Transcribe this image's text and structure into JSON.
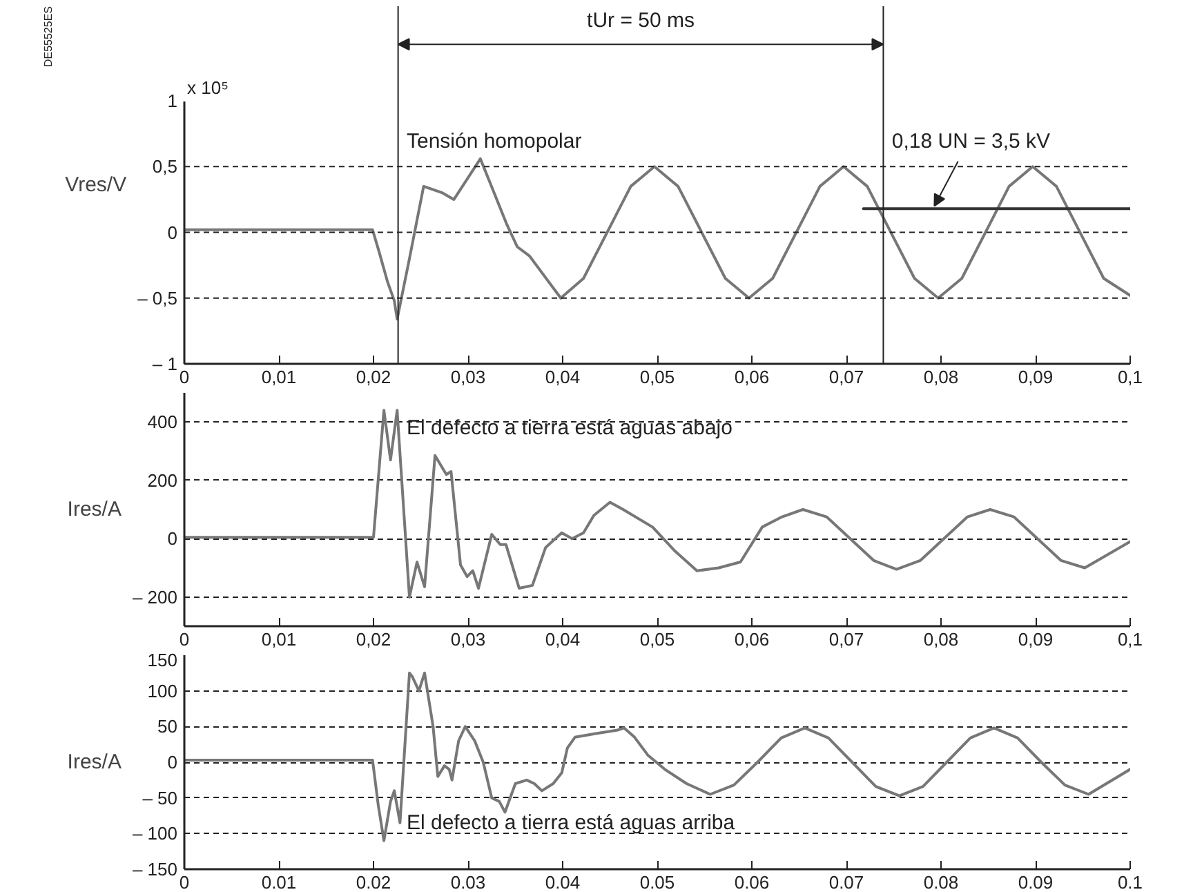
{
  "chart_data": [
    {
      "type": "line",
      "ylabel": "Vres/V",
      "xlim": [
        0,
        0.1
      ],
      "ylim": [
        -1,
        1
      ],
      "xticks": [
        0,
        {
          "value": 0.01,
          "label": "0,01"
        },
        {
          "value": 0.02,
          "label": "0,02"
        },
        {
          "value": 0.03,
          "label": "0,03"
        },
        {
          "value": 0.04,
          "label": "0,04"
        },
        {
          "value": 0.05,
          "label": "0,05"
        },
        {
          "value": 0.06,
          "label": "0,06"
        },
        {
          "value": 0.07,
          "label": "0,07"
        },
        {
          "value": 0.08,
          "label": "0,08"
        },
        {
          "value": 0.09,
          "label": "0,09"
        },
        {
          "value": 0.1,
          "label": "0,1"
        }
      ],
      "yticks": [
        1,
        {
          "value": 0.5,
          "label": "0,5"
        },
        0,
        {
          "value": -0.5,
          "label": "– 0,5"
        },
        {
          "value": -1,
          "label": "– 1"
        }
      ],
      "series": [
        {
          "color": "#777777",
          "x": [
            0,
            0.0199,
            0.0206,
            0.0215,
            0.0222,
            0.0225,
            0.0238,
            0.0253,
            0.0273,
            0.0285,
            0.0313,
            0.0341,
            0.0352,
            0.0365,
            0.0398,
            0.0422,
            0.0447,
            0.0472,
            0.0497,
            0.0522,
            0.0547,
            0.0572,
            0.0597,
            0.0622,
            0.0647,
            0.0672,
            0.0697,
            0.0722,
            0.0747,
            0.0772,
            0.0797,
            0.0822,
            0.0847,
            0.0872,
            0.0897,
            0.0922,
            0.0947,
            0.0972,
            0.1
          ],
          "values": [
            0.02,
            0.02,
            -0.15,
            -0.38,
            -0.52,
            -0.66,
            -0.2,
            0.35,
            0.3,
            0.25,
            0.56,
            0.06,
            -0.11,
            -0.18,
            -0.5,
            -0.35,
            0,
            0.35,
            0.5,
            0.35,
            0,
            -0.35,
            -0.5,
            -0.35,
            0,
            0.35,
            0.5,
            0.35,
            0,
            -0.35,
            -0.5,
            -0.35,
            0,
            0.35,
            0.5,
            0.35,
            0,
            -0.35,
            -0.48
          ]
        },
        {
          "type": "line",
          "color": "#333333",
          "x": [
            0.0718,
            0.1
          ],
          "values": [
            0.18,
            0.18
          ]
        }
      ],
      "ref_lines": [
        {
          "axis": "y",
          "value": 0.5,
          "color": "#222222",
          "line_style": "dashed"
        },
        {
          "axis": "y",
          "value": 0,
          "color": "#222222",
          "line_style": "dashed"
        },
        {
          "axis": "y",
          "value": -0.5,
          "color": "#222222",
          "line_style": "dashed"
        },
        {
          "axis": "x",
          "value": 0.0226,
          "color": "#222222",
          "line_style": "solid"
        },
        {
          "axis": "x",
          "value": 0.0739,
          "color": "#222222",
          "line_style": "solid"
        }
      ],
      "annotations": [
        "DE55525ES",
        "x 10⁵",
        "Tensión homopolar",
        "tUr = 50 ms",
        {
          "text": "0,18 UN = 3,5 kV",
          "x": 0.0793,
          "y": 0.2
        }
      ]
    },
    {
      "type": "line",
      "ylabel": "Ires/A",
      "xlim": [
        0,
        0.1
      ],
      "ylim": [
        -300,
        500
      ],
      "grid": "y",
      "xticks": [
        0,
        {
          "value": 0.01,
          "label": "0,01"
        },
        {
          "value": 0.02,
          "label": "0,02"
        },
        {
          "value": 0.03,
          "label": "0,03"
        },
        {
          "value": 0.04,
          "label": "0,04"
        },
        {
          "value": 0.05,
          "label": "0,05"
        },
        {
          "value": 0.06,
          "label": "0,06"
        },
        {
          "value": 0.07,
          "label": "0,07"
        },
        {
          "value": 0.08,
          "label": "0,08"
        },
        {
          "value": 0.09,
          "label": "0,09"
        },
        {
          "value": 0.1,
          "label": "0,1"
        }
      ],
      "yticks": [
        400,
        200,
        0,
        {
          "value": -200,
          "label": "– 200"
        }
      ],
      "series": [
        {
          "color": "#777777",
          "x": [
            0,
            0.02,
            0.0211,
            0.0218,
            0.0225,
            0.0238,
            0.0246,
            0.0254,
            0.0265,
            0.0277,
            0.0282,
            0.0292,
            0.0299,
            0.0305,
            0.0311,
            0.0325,
            0.0334,
            0.034,
            0.0354,
            0.0368,
            0.0382,
            0.0399,
            0.041,
            0.0422,
            0.0433,
            0.045,
            0.0464,
            0.0495,
            0.0518,
            0.0542,
            0.0565,
            0.0588,
            0.0611,
            0.0632,
            0.0654,
            0.0679,
            0.0704,
            0.0729,
            0.0753,
            0.0778,
            0.0803,
            0.0828,
            0.0852,
            0.0877,
            0.0902,
            0.0927,
            0.0952,
            0.1
          ],
          "values": [
            5,
            5,
            440,
            270,
            440,
            -200,
            -80,
            -165,
            285,
            220,
            230,
            -90,
            -130,
            -110,
            -170,
            15,
            -20,
            -20,
            -170,
            -160,
            -30,
            20,
            0,
            20,
            80,
            125,
            100,
            40,
            -40,
            -110,
            -100,
            -80,
            40,
            75,
            100,
            75,
            0,
            -75,
            -105,
            -75,
            0,
            75,
            100,
            75,
            0,
            -75,
            -100,
            -10
          ]
        }
      ],
      "annotations": [
        "El defecto a tierra está aguas abajo"
      ]
    },
    {
      "type": "line",
      "ylabel": "Ires/A",
      "xlim": [
        0,
        0.1
      ],
      "ylim": [
        -150,
        150
      ],
      "grid": "y",
      "xticks": [
        0,
        {
          "value": 0.01,
          "label": "0.01"
        },
        {
          "value": 0.02,
          "label": "0.02"
        },
        {
          "value": 0.03,
          "label": "0.03"
        },
        {
          "value": 0.04,
          "label": "0.04"
        },
        {
          "value": 0.05,
          "label": "0.05"
        },
        {
          "value": 0.06,
          "label": "0.06"
        },
        {
          "value": 0.07,
          "label": "0.07"
        },
        {
          "value": 0.08,
          "label": "0.08"
        },
        {
          "value": 0.09,
          "label": "0.09"
        },
        {
          "value": 0.1,
          "label": "0.1"
        }
      ],
      "yticks": [
        150,
        100,
        50,
        0,
        {
          "value": -50,
          "label": "– 50"
        },
        {
          "value": -100,
          "label": "– 100"
        },
        {
          "value": -150,
          "label": "– 150"
        }
      ],
      "series": [
        {
          "color": "#777777",
          "x": [
            0,
            0.0199,
            0.0205,
            0.0211,
            0.0218,
            0.0222,
            0.0228,
            0.0238,
            0.0241,
            0.0248,
            0.0254,
            0.0263,
            0.0268,
            0.0275,
            0.028,
            0.0283,
            0.029,
            0.0297,
            0.0307,
            0.0316,
            0.0325,
            0.0333,
            0.0339,
            0.035,
            0.0362,
            0.037,
            0.0378,
            0.039,
            0.0399,
            0.0405,
            0.0413,
            0.0434,
            0.0458,
            0.0465,
            0.0476,
            0.049,
            0.0508,
            0.0531,
            0.0556,
            0.0581,
            0.0606,
            0.0631,
            0.0656,
            0.0681,
            0.0706,
            0.0731,
            0.0756,
            0.0781,
            0.0806,
            0.0831,
            0.0856,
            0.0881,
            0.0906,
            0.0931,
            0.0956,
            0.1
          ],
          "values": [
            3,
            3,
            -60,
            -110,
            -55,
            -40,
            -85,
            125,
            120,
            100,
            125,
            50,
            -20,
            -5,
            -10,
            -25,
            30,
            50,
            30,
            0,
            -50,
            -55,
            -70,
            -30,
            -25,
            -30,
            -40,
            -30,
            -15,
            20,
            35,
            40,
            45,
            48,
            35,
            10,
            -10,
            -30,
            -45,
            -32,
            0,
            34,
            48,
            34,
            0,
            -34,
            -47,
            -34,
            0,
            34,
            48,
            34,
            0,
            -32,
            -45,
            -10
          ]
        }
      ],
      "annotations": [
        "El defecto a tierra está aguas arriba"
      ]
    }
  ]
}
